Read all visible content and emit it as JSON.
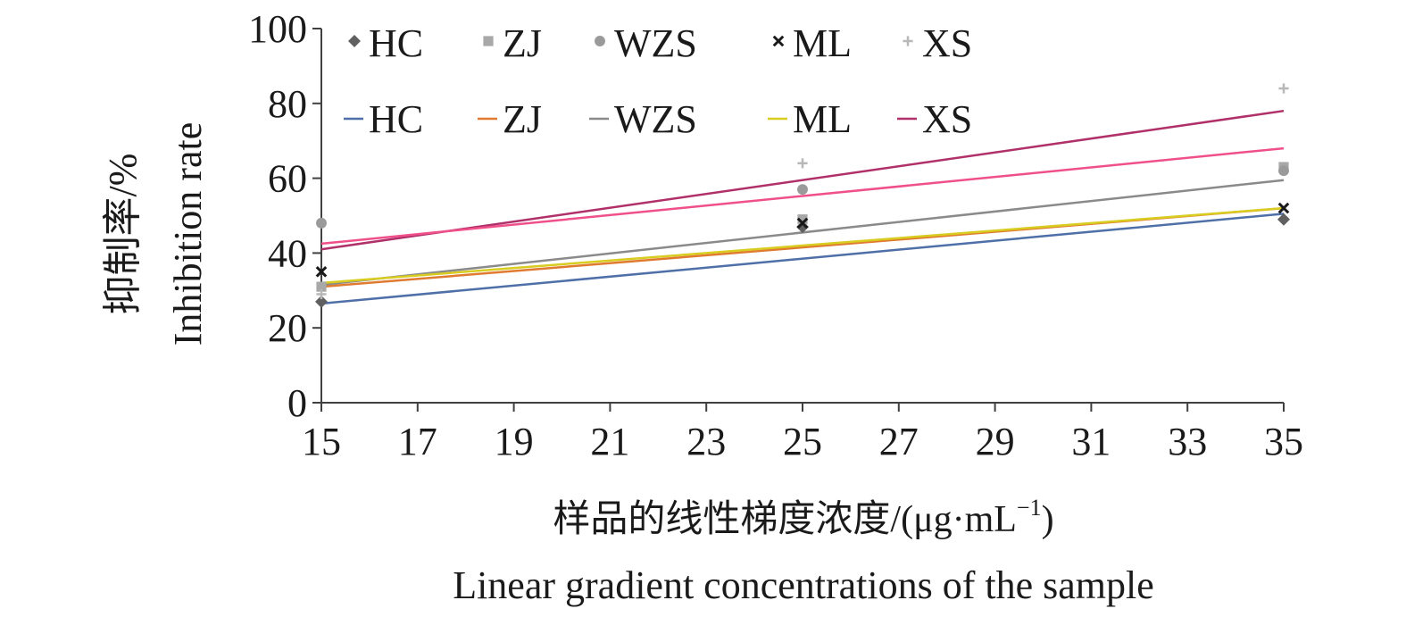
{
  "chart_data": {
    "type": "scatter",
    "x": [
      15,
      25,
      35
    ],
    "xlim": [
      15,
      35
    ],
    "ylim": [
      0,
      100
    ],
    "x_ticks": [
      "15",
      "17",
      "19",
      "21",
      "23",
      "25",
      "27",
      "29",
      "31",
      "33",
      "35"
    ],
    "y_ticks": [
      "0",
      "20",
      "40",
      "60",
      "80",
      "100"
    ],
    "ylabel_cn": "抑制率/%",
    "ylabel_en": "Inhibition rate",
    "xlabel_cn": "样品的线性梯度浓度/(μg·mL",
    "xlabel_exp": "−1",
    "xlabel_close": ")",
    "xlabel_en": "Linear gradient concentrations of the sample",
    "grid": false,
    "legend_position": "top",
    "series": [
      {
        "name": "HC",
        "marker": "diamond",
        "marker_color": "#606060",
        "values": [
          27,
          47,
          49
        ]
      },
      {
        "name": "ZJ",
        "marker": "square",
        "marker_color": "#a8a8a8",
        "values": [
          31,
          49,
          63
        ]
      },
      {
        "name": "WZS",
        "marker": "circle",
        "marker_color": "#9a9a9a",
        "values": [
          48,
          57,
          62
        ]
      },
      {
        "name": "ML",
        "marker": "x",
        "marker_color": "#1a1a1a",
        "values": [
          35,
          48,
          52
        ]
      },
      {
        "name": "XS",
        "marker": "plus",
        "marker_color": "#b8b8b8",
        "values": [
          29,
          64,
          84
        ]
      }
    ],
    "trendlines": [
      {
        "name": "HC",
        "color": "#4f6fa8",
        "start": [
          15,
          26.5
        ],
        "end": [
          35,
          50.5
        ]
      },
      {
        "name": "ZJ",
        "color": "#e07a30",
        "start": [
          15,
          31
        ],
        "end": [
          35,
          52
        ]
      },
      {
        "name": "WZS",
        "color": "#8a8a8a",
        "start": [
          15,
          31.5
        ],
        "end": [
          35,
          59.5
        ]
      },
      {
        "name": "ML",
        "color": "#d8cc20",
        "start": [
          15,
          32
        ],
        "end": [
          35,
          52
        ]
      },
      {
        "name": "XS",
        "color": "#b0306a",
        "start": [
          15,
          41
        ],
        "end": [
          35,
          78
        ]
      },
      {
        "name": "",
        "color": "#f0508a",
        "start": [
          15,
          42.5
        ],
        "end": [
          35,
          68
        ]
      }
    ]
  }
}
